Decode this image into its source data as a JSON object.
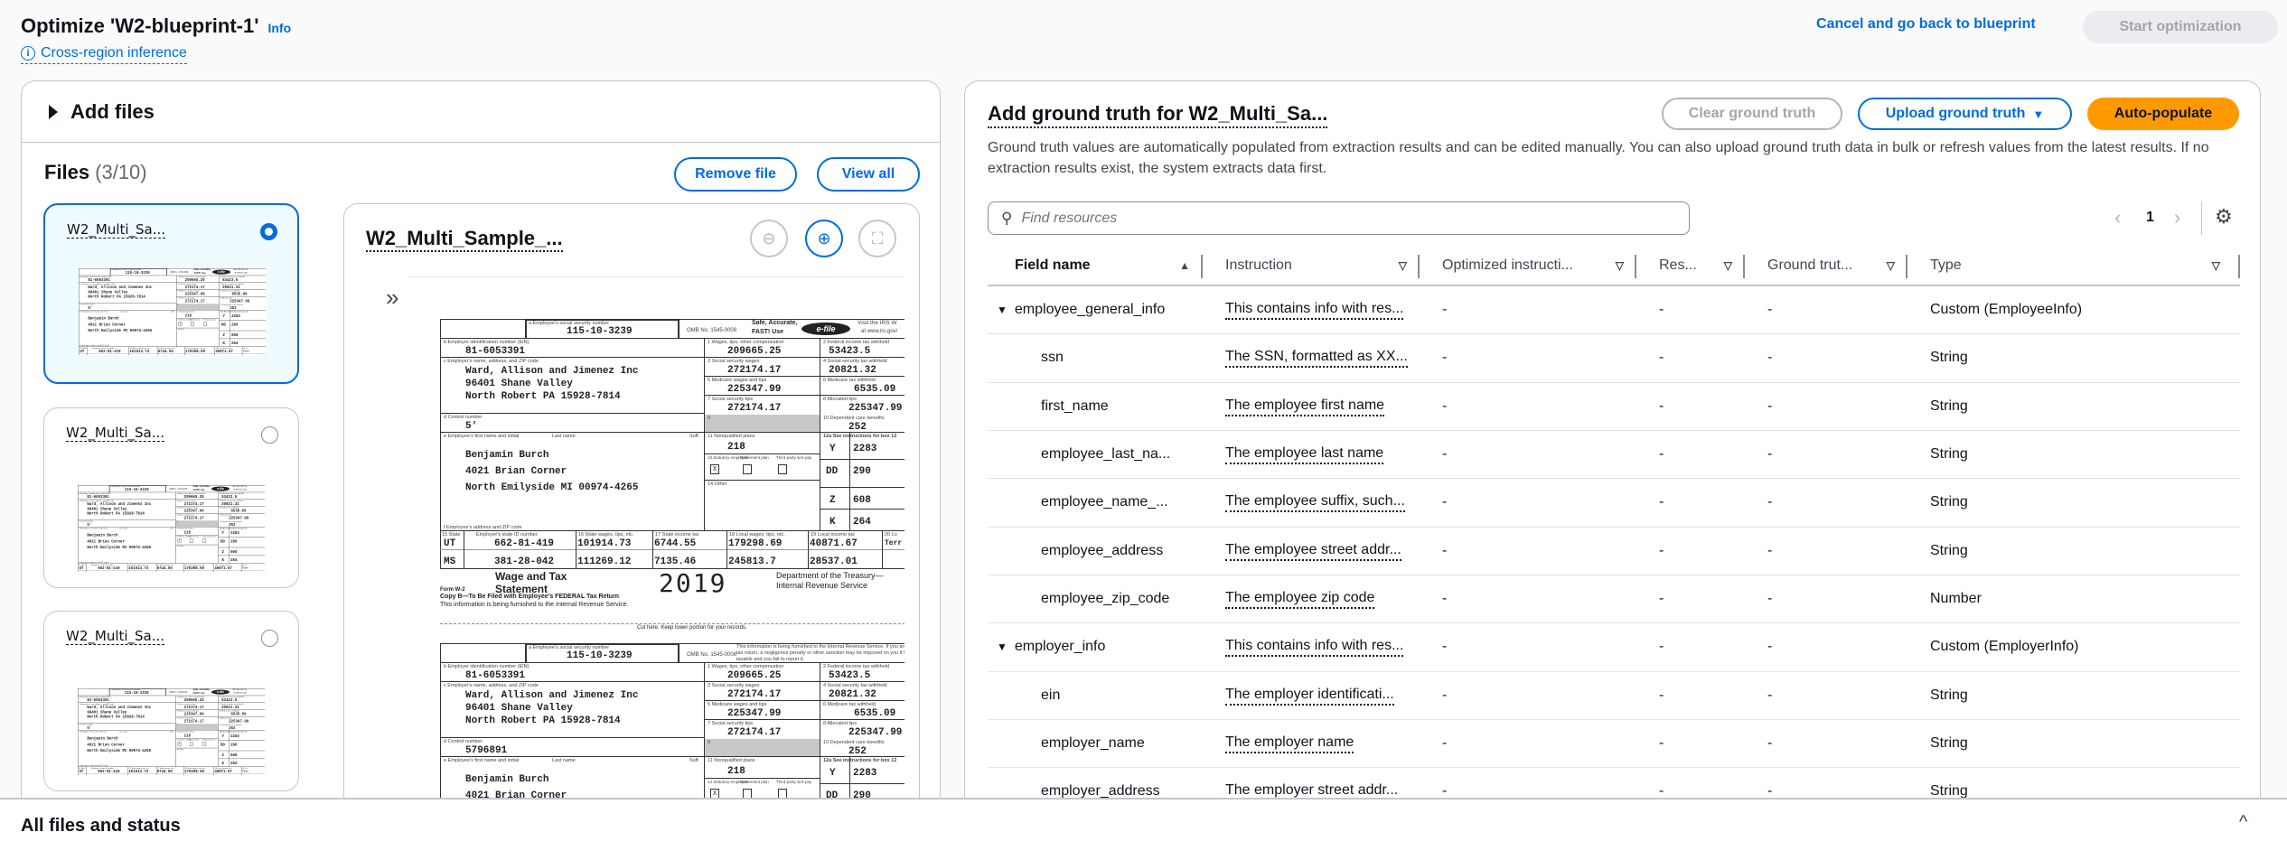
{
  "header": {
    "title": "Optimize 'W2-blueprint-1'",
    "info": "Info",
    "cross_region": "Cross-region inference",
    "cancel": "Cancel and go back to blueprint",
    "start": "Start optimization"
  },
  "left": {
    "add_files": "Add files",
    "files_label": "Files",
    "files_count": "(3/10)",
    "remove_file": "Remove file",
    "view_all": "View all",
    "cards": [
      {
        "name": "W2_Multi_Sa...",
        "selected": true
      },
      {
        "name": "W2_Multi_Sa...",
        "selected": false
      },
      {
        "name": "W2_Multi_Sa...",
        "selected": false
      }
    ],
    "preview_title": "W2_Multi_Sample_..."
  },
  "w2": {
    "ssn_label": "a  Employee's social security number",
    "ssn": "115-10-3239",
    "omb": "OMB No. 1545-0008",
    "safe_1": "Safe, Accurate,",
    "safe_2": "FAST! Use",
    "efile": "e-file",
    "visit_1": "Visit the IRS W",
    "visit_2": "at www.irs.gov/",
    "copy2_notice": "This information is being furnished to the Internal Revenue Service. If you are required to file a tax return, a negligence penalty or other sanction may be imposed on you if this income is taxable and you fail to report it.",
    "ein_label": "b  Employer identification number (EIN)",
    "ein": "81-6053391",
    "employer_label": "c  Employer's name, address, and ZIP code",
    "employer_lines": [
      "Ward, Allison and Jimenez Inc",
      "96401 Shane Valley",
      "North Robert  PA 15928-7814"
    ],
    "control_label": "d  Control number",
    "control_number": "5'",
    "copy2_control_number": "5796891",
    "employee_label": "e  Employee's first name and initial",
    "last_name_label": "Last name",
    "suff_label": "Suff.",
    "employee_lines": [
      "Benjamin Burch",
      "4021 Brian Corner",
      "North Emilyside  MI    00974-4265"
    ],
    "f_label": "f  Employee's address and ZIP code",
    "boxes": {
      "b1_label": "1   Wages, tips, other compensation",
      "b1": "209665.25",
      "b2_label": "2   Federal income tax withheld",
      "b2": "53423.5",
      "b3_label": "3   Social security wages",
      "b3": "272174.17",
      "b4_label": "4   Social security tax withheld",
      "b4": "20821.32",
      "b5_label": "5   Medicare wages and tips",
      "b5": "225347.99",
      "b6_label": "6   Medicare tax withheld",
      "b6": "6535.09",
      "b7_label": "7   Social security tips",
      "b7": "272174.17",
      "b8_label": "8   Allocated tips",
      "b8": "225347.99",
      "b9_label": "9",
      "b10_label": "10   Dependent care benefits",
      "b10": "252",
      "b11_label": "11   Nonqualified plans",
      "b11": "218",
      "b12a_label": "12a  See instructions for box 12",
      "b12": [
        {
          "code": "Y",
          "amount": "2283"
        },
        {
          "code": "DD",
          "amount": "290"
        },
        {
          "code": "Z",
          "amount": "608"
        },
        {
          "code": "K",
          "amount": "264"
        }
      ],
      "b13_label": "13 Statutory employee",
      "b13_retirement": "Retirement plan",
      "b13_thirdparty": "Third-party sick pay",
      "b13_check": "X",
      "b14_label": "14   Other"
    },
    "state_headers": [
      "15 State",
      "Employer's state ID number",
      "16 State wages, tips, etc.",
      "17 State income tax",
      "18 Local wages, tips, etc.",
      "19 Local income tax",
      "20 Lo"
    ],
    "state_rows": [
      [
        "UT",
        "662-81-419",
        "101914.73",
        "6744.55",
        "179298.69",
        "40871.67",
        "Terr"
      ],
      [
        "MS",
        "381-28-042",
        "111269.12",
        "7135.46",
        "245813.7",
        "28537.01",
        ""
      ]
    ],
    "wage_1": "Wage and Tax",
    "wage_2": "Statement",
    "year": "2019",
    "form": "Form W-2",
    "dept": "Department of the Treasury—Internal Revenue Service",
    "copy_b": "Copy B—To Be Filed with Employee's FEDERAL Tax Return",
    "furnished": "This information is being furnished to the Internal Revenue Service.",
    "cut_here": "Cut here. Keep lower portion for your records."
  },
  "right": {
    "title": "Add ground truth for W2_Multi_Sa...",
    "clear": "Clear ground truth",
    "upload": "Upload ground truth",
    "auto": "Auto-populate",
    "description": "Ground truth values are automatically populated from extraction results and can be edited manually. You can also upload ground truth data in bulk or refresh values from the latest results. If no extraction results exist, the system extracts data first.",
    "search_placeholder": "Find resources",
    "page": "1",
    "columns": [
      "Field name",
      "Instruction",
      "Optimized instructi...",
      "Res...",
      "Ground trut...",
      "Type"
    ],
    "rows": [
      {
        "field": "employee_general_info",
        "instruction": "This contains info with res...",
        "optimized": "-",
        "result": "-",
        "ground_truth": "-",
        "type": "Custom (EmployeeInfo)",
        "parent": true
      },
      {
        "field": "ssn",
        "instruction": "The SSN, formatted as XX...",
        "optimized": "-",
        "result": "-",
        "ground_truth": "-",
        "type": "String"
      },
      {
        "field": "first_name",
        "instruction": "The employee first name",
        "optimized": "-",
        "result": "-",
        "ground_truth": "-",
        "type": "String"
      },
      {
        "field": "employee_last_na...",
        "instruction": "The employee last name",
        "optimized": "-",
        "result": "-",
        "ground_truth": "-",
        "type": "String"
      },
      {
        "field": "employee_name_...",
        "instruction": "The employee suffix, such...",
        "optimized": "-",
        "result": "-",
        "ground_truth": "-",
        "type": "String"
      },
      {
        "field": "employee_address",
        "instruction": "The employee street addr...",
        "optimized": "-",
        "result": "-",
        "ground_truth": "-",
        "type": "String"
      },
      {
        "field": "employee_zip_code",
        "instruction": "The employee zip code",
        "optimized": "-",
        "result": "-",
        "ground_truth": "-",
        "type": "Number"
      },
      {
        "field": "employer_info",
        "instruction": "This contains info with res...",
        "optimized": "-",
        "result": "-",
        "ground_truth": "-",
        "type": "Custom (EmployerInfo)",
        "parent": true
      },
      {
        "field": "ein",
        "instruction": "The employer identificati...",
        "optimized": "-",
        "result": "-",
        "ground_truth": "-",
        "type": "String"
      },
      {
        "field": "employer_name",
        "instruction": "The employer name",
        "optimized": "-",
        "result": "-",
        "ground_truth": "-",
        "type": "String"
      },
      {
        "field": "employer_address",
        "instruction": "The employer street addr...",
        "optimized": "-",
        "result": "-",
        "ground_truth": "-",
        "type": "String"
      }
    ]
  },
  "footer": {
    "title": "All files and status"
  },
  "colors": {
    "link": "#006ce0",
    "primary": "#ff9900",
    "border": "#c6c6cd",
    "disabled_bg": "#ebebf0"
  }
}
